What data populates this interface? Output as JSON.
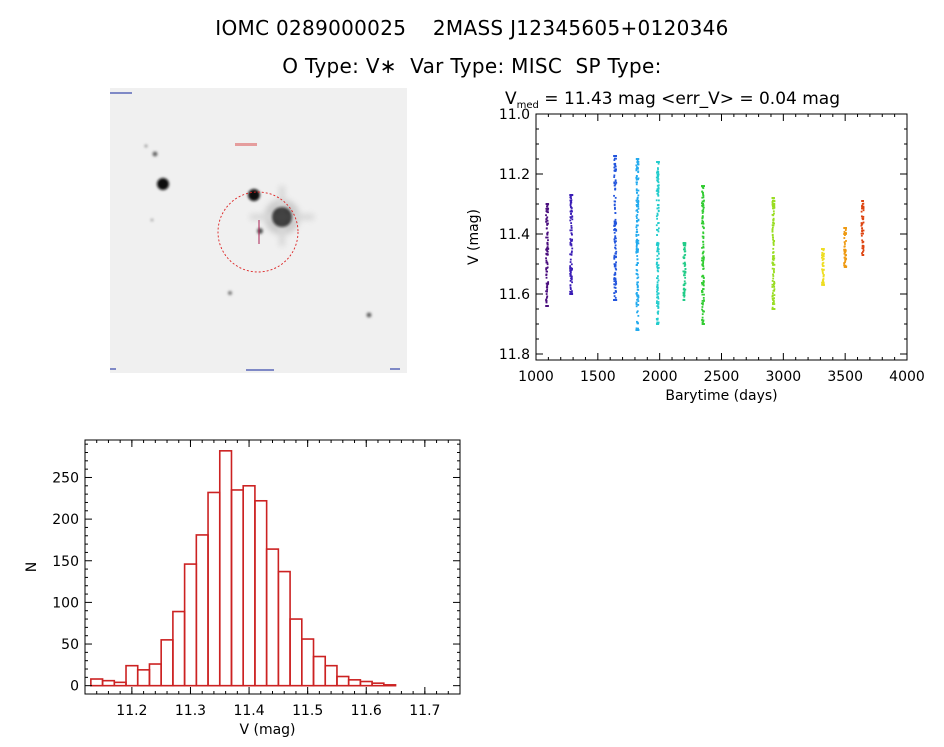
{
  "header": {
    "line1": "IOMC 0289000025    2MASS J12345605+0120346",
    "line2": "O Type: V∗  Var Type: MISC  SP Type:"
  },
  "stamp_image": {
    "description_icon": "star-field-image",
    "colors": {
      "circle": "#dd2222",
      "marker": "#aa2255",
      "text_blue": "#3344aa"
    }
  },
  "chart_data": [
    {
      "type": "scatter",
      "title_main": "V",
      "title_sub": "med",
      "title_rest": " = 11.43 mag <err_V> = 0.04 mag",
      "xlabel": "Barytime (days)",
      "ylabel": "V (mag)",
      "xlim": [
        1000,
        4000
      ],
      "ylim": [
        11.82,
        11.0
      ],
      "y_inverted": true,
      "xticks": [
        "1000",
        "1500",
        "2000",
        "2500",
        "3000",
        "3500",
        "4000"
      ],
      "xtick_values": [
        1000,
        1500,
        2000,
        2500,
        3000,
        3500,
        4000
      ],
      "yticks": [
        "11.0",
        "11.2",
        "11.4",
        "11.6",
        "11.8"
      ],
      "ytick_values": [
        11.0,
        11.2,
        11.4,
        11.6,
        11.8
      ],
      "series": [
        {
          "x": 1090,
          "ymin": 11.3,
          "ymax": 11.64,
          "color": "#4b0f7e"
        },
        {
          "x": 1285,
          "ymin": 11.27,
          "ymax": 11.6,
          "color": "#3a1db5"
        },
        {
          "x": 1640,
          "ymin": 11.14,
          "ymax": 11.62,
          "color": "#2255dd"
        },
        {
          "x": 1820,
          "ymin": 11.15,
          "ymax": 11.72,
          "color": "#22aaee"
        },
        {
          "x": 1985,
          "ymin": 11.16,
          "ymax": 11.7,
          "color": "#22cccc"
        },
        {
          "x": 2200,
          "ymin": 11.43,
          "ymax": 11.62,
          "color": "#22cc88"
        },
        {
          "x": 2350,
          "ymin": 11.24,
          "ymax": 11.7,
          "color": "#33cc33"
        },
        {
          "x": 2920,
          "ymin": 11.28,
          "ymax": 11.65,
          "color": "#99dd22"
        },
        {
          "x": 3320,
          "ymin": 11.45,
          "ymax": 11.57,
          "color": "#eedd22"
        },
        {
          "x": 3500,
          "ymin": 11.38,
          "ymax": 11.51,
          "color": "#ee9911"
        },
        {
          "x": 3640,
          "ymin": 11.29,
          "ymax": 11.47,
          "color": "#dd4411"
        }
      ]
    },
    {
      "type": "bar",
      "subtype": "histogram",
      "xlabel": "V (mag)",
      "ylabel": "N",
      "xlim": [
        11.12,
        11.76
      ],
      "ylim": [
        -10,
        295
      ],
      "bin_width": 0.02,
      "bin_start": 11.14,
      "values": [
        8,
        6,
        4,
        24,
        19,
        26,
        55,
        89,
        146,
        181,
        232,
        282,
        235,
        240,
        222,
        164,
        137,
        80,
        56,
        35,
        24,
        11,
        7,
        5,
        3,
        1
      ],
      "xticks": [
        "11.2",
        "11.3",
        "11.4",
        "11.5",
        "11.6",
        "11.7"
      ],
      "xtick_values": [
        11.2,
        11.3,
        11.4,
        11.5,
        11.6,
        11.7
      ],
      "yticks": [
        "0",
        "50",
        "100",
        "150",
        "200",
        "250"
      ],
      "ytick_values": [
        0,
        50,
        100,
        150,
        200,
        250
      ],
      "bar_color": "#cc2222"
    }
  ]
}
